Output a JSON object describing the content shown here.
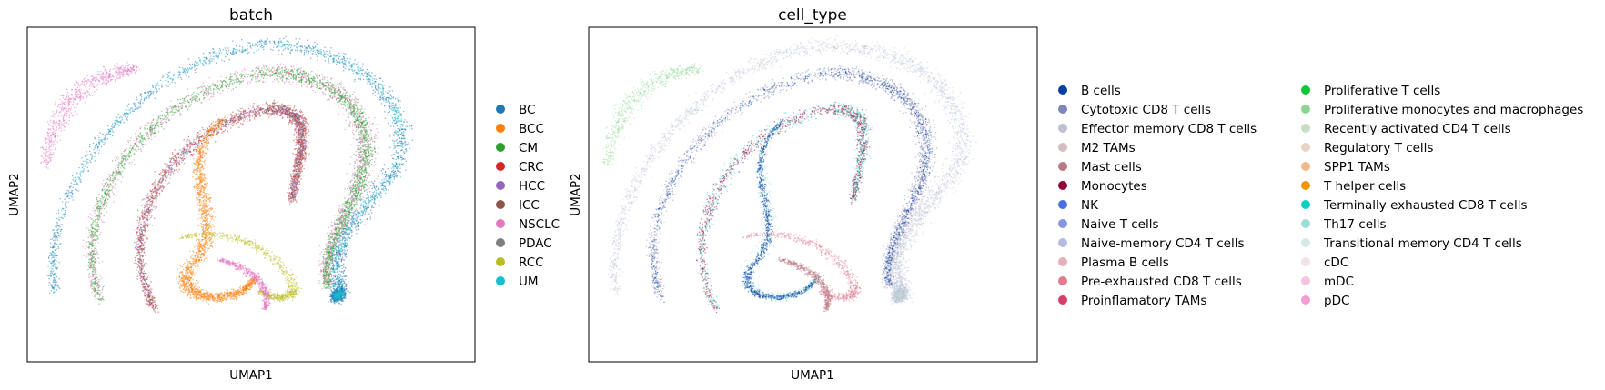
{
  "chart_data": [
    {
      "type": "scatter",
      "title": "batch",
      "xlabel": "UMAP1",
      "ylabel": "UMAP2",
      "ticks": "none",
      "grid": false,
      "legend_position": "right",
      "legend_columns": 1,
      "categories": [
        {
          "name": "BC",
          "color": "#1f77b4"
        },
        {
          "name": "BCC",
          "color": "#ff7f0e"
        },
        {
          "name": "CM",
          "color": "#2ca02c"
        },
        {
          "name": "CRC",
          "color": "#d62728"
        },
        {
          "name": "HCC",
          "color": "#9467bd"
        },
        {
          "name": "ICC",
          "color": "#8c564b"
        },
        {
          "name": "NSCLC",
          "color": "#e377c2"
        },
        {
          "name": "PDAC",
          "color": "#7f7f7f"
        },
        {
          "name": "RCC",
          "color": "#bcbd22"
        },
        {
          "name": "UM",
          "color": "#17becf"
        }
      ]
    },
    {
      "type": "scatter",
      "title": "cell_type",
      "xlabel": "UMAP1",
      "ylabel": "UMAP2",
      "ticks": "none",
      "grid": false,
      "legend_position": "right",
      "legend_columns": 2,
      "categories": [
        {
          "name": "B cells",
          "color": "#023fa5"
        },
        {
          "name": "Cytotoxic CD8 T cells",
          "color": "#7d87b9"
        },
        {
          "name": "Effector memory CD8 T cells",
          "color": "#bec1d4"
        },
        {
          "name": "M2 TAMs",
          "color": "#d6bcc0"
        },
        {
          "name": "Mast cells",
          "color": "#bb7784"
        },
        {
          "name": "Monocytes",
          "color": "#8e063b"
        },
        {
          "name": "NK",
          "color": "#4a6fe3"
        },
        {
          "name": "Naive T cells",
          "color": "#8595e1"
        },
        {
          "name": "Naive-memory CD4 T cells",
          "color": "#b5bbe3"
        },
        {
          "name": "Plasma B cells",
          "color": "#e6afb9"
        },
        {
          "name": "Pre-exhausted CD8 T cells",
          "color": "#e07b91"
        },
        {
          "name": "Proinflamatory TAMs",
          "color": "#d33f6a"
        },
        {
          "name": "Proliferative T cells",
          "color": "#11c638"
        },
        {
          "name": "Proliferative monocytes and macrophages",
          "color": "#8dd593"
        },
        {
          "name": "Recently activated CD4 T cells",
          "color": "#c6dec7"
        },
        {
          "name": "Regulatory T cells",
          "color": "#ead3c6"
        },
        {
          "name": "SPP1 TAMs",
          "color": "#f0b98d"
        },
        {
          "name": "T helper cells",
          "color": "#ef9708"
        },
        {
          "name": "Terminally exhausted CD8 T cells",
          "color": "#0fcfc0"
        },
        {
          "name": "Th17 cells",
          "color": "#9cded6"
        },
        {
          "name": "Transitional memory CD4 T cells",
          "color": "#d5eae7"
        },
        {
          "name": "cDC",
          "color": "#f3e1eb"
        },
        {
          "name": "mDC",
          "color": "#f6c4e1"
        },
        {
          "name": "pDC",
          "color": "#f79cd4"
        }
      ]
    }
  ]
}
